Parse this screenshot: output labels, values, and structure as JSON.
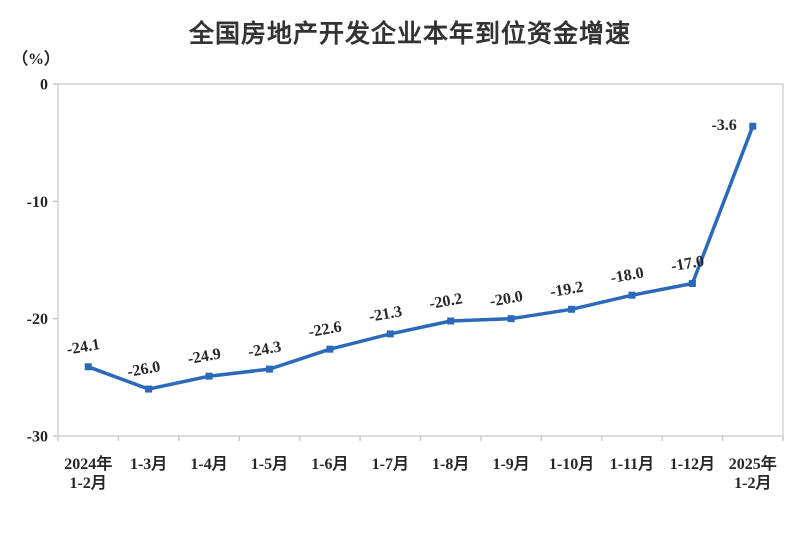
{
  "header": {
    "title": "全国房地产开发企业本年到位资金增速",
    "unit_label": "（%）"
  },
  "chart_data": {
    "type": "line",
    "title": "全国房地产开发企业本年到位资金增速",
    "unit": "（%）",
    "categories": [
      [
        "2024年",
        "1-2月"
      ],
      [
        "1-3月"
      ],
      [
        "1-4月"
      ],
      [
        "1-5月"
      ],
      [
        "1-6月"
      ],
      [
        "1-7月"
      ],
      [
        "1-8月"
      ],
      [
        "1-9月"
      ],
      [
        "1-10月"
      ],
      [
        "1-11月"
      ],
      [
        "1-12月"
      ],
      [
        "2025年",
        "1-2月"
      ]
    ],
    "values": [
      -24.1,
      -26.0,
      -24.9,
      -24.3,
      -22.6,
      -21.3,
      -20.2,
      -20.0,
      -19.2,
      -18.0,
      -17.0,
      -3.6
    ],
    "point_labels": [
      "-24.1",
      "-26.0",
      "-24.9",
      "-24.3",
      "-22.6",
      "-21.3",
      "-20.2",
      "-20.0",
      "-19.2",
      "-18.0",
      "-17.0",
      "-3.6"
    ],
    "label_placements": [
      "above",
      "above",
      "above",
      "above",
      "above",
      "above",
      "above",
      "above",
      "above",
      "above",
      "above",
      "left"
    ],
    "label_rotation_deg": -10,
    "ylim": [
      -30,
      0
    ],
    "yticks": [
      0,
      -10,
      -20,
      -30
    ],
    "ytick_labels": [
      "0",
      "-10",
      "-20",
      "-30"
    ],
    "grid": false,
    "legend": null,
    "colors": {
      "line": "#2b69ba",
      "marker": "#2b69ba",
      "frame": "#d2d2d2",
      "tick": "#c9c9c9",
      "text": "#262626",
      "title": "#333333"
    }
  }
}
